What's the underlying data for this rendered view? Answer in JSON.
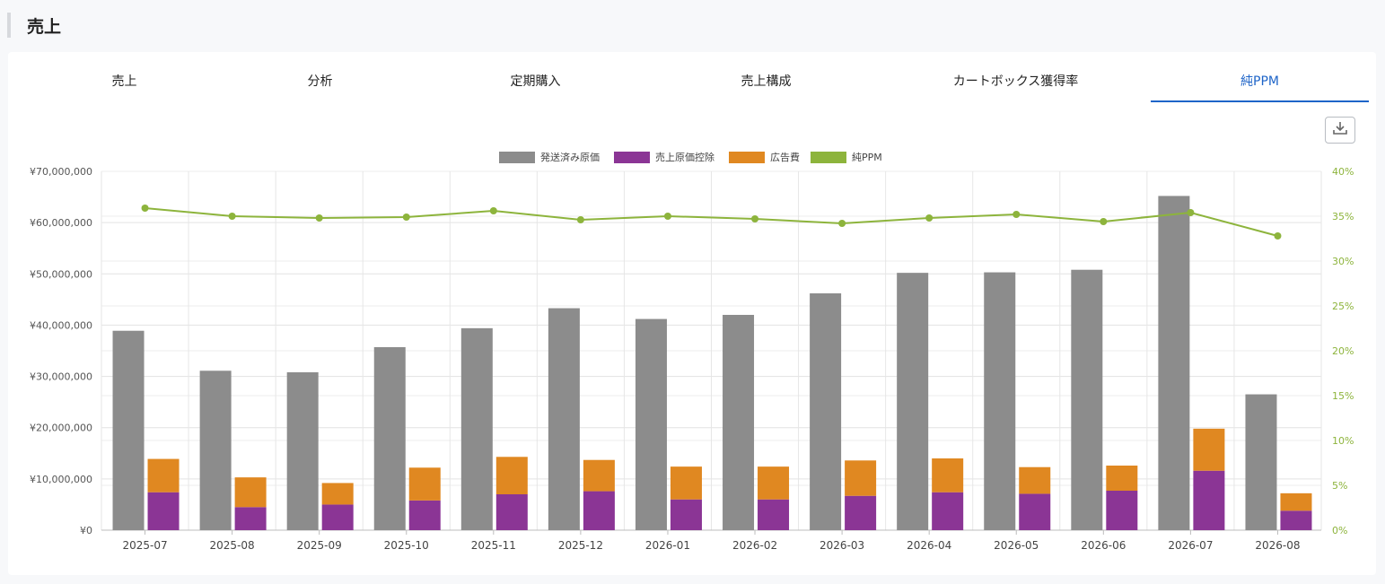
{
  "page": {
    "title": "売上"
  },
  "tabs": [
    {
      "label": "売上",
      "active": false
    },
    {
      "label": "分析",
      "active": false
    },
    {
      "label": "定期購入",
      "active": false
    },
    {
      "label": "売上構成",
      "active": false
    },
    {
      "label": "カートボックス獲得率",
      "active": false
    },
    {
      "label": "純PPM",
      "active": true
    }
  ],
  "toolbar": {
    "download_icon": "download-icon"
  },
  "colors": {
    "shipped_cost": "#8c8c8c",
    "cost_deduction": "#8b3595",
    "ad_cost": "#e08821",
    "net_ppm": "#8db43c",
    "active_tab": "#1e64c8"
  },
  "chart_data": {
    "type": "bar",
    "categories": [
      "2025-07",
      "2025-08",
      "2025-09",
      "2025-10",
      "2025-11",
      "2025-12",
      "2026-01",
      "2026-02",
      "2026-03",
      "2026-04",
      "2026-05",
      "2026-06",
      "2026-07",
      "2026-08"
    ],
    "series": [
      {
        "name": "発送済み原価",
        "kind": "bar",
        "axis": "left",
        "values": [
          38900000,
          31100000,
          30800000,
          35700000,
          39400000,
          43300000,
          41200000,
          42000000,
          46200000,
          50200000,
          50300000,
          50800000,
          65200000,
          26500000
        ]
      },
      {
        "name": "売上原価控除",
        "kind": "stacked-bar",
        "axis": "left",
        "values": [
          7400000,
          4500000,
          5000000,
          5800000,
          7000000,
          7600000,
          6000000,
          6000000,
          6700000,
          7400000,
          7100000,
          7700000,
          11600000,
          3800000
        ]
      },
      {
        "name": "広告費",
        "kind": "stacked-bar",
        "axis": "left",
        "values": [
          6500000,
          5800000,
          4200000,
          6400000,
          7300000,
          6100000,
          6400000,
          6400000,
          6900000,
          6600000,
          5200000,
          4900000,
          8200000,
          3400000
        ]
      },
      {
        "name": "純PPM",
        "kind": "line",
        "axis": "right",
        "values": [
          35.9,
          35.0,
          34.8,
          34.9,
          35.6,
          34.6,
          35.0,
          34.7,
          34.2,
          34.8,
          35.2,
          34.4,
          35.4,
          32.8
        ]
      }
    ],
    "y_left": {
      "min": 0,
      "max": 70000000,
      "ticks": [
        "¥0",
        "¥10,000,000",
        "¥20,000,000",
        "¥30,000,000",
        "¥40,000,000",
        "¥50,000,000",
        "¥60,000,000",
        "¥70,000,000"
      ]
    },
    "y_right": {
      "min": 0,
      "max": 40,
      "ticks": [
        "0%",
        "5%",
        "10%",
        "15%",
        "20%",
        "25%",
        "30%",
        "35%",
        "40%"
      ]
    },
    "legend_position": "top-center",
    "grid": true
  }
}
